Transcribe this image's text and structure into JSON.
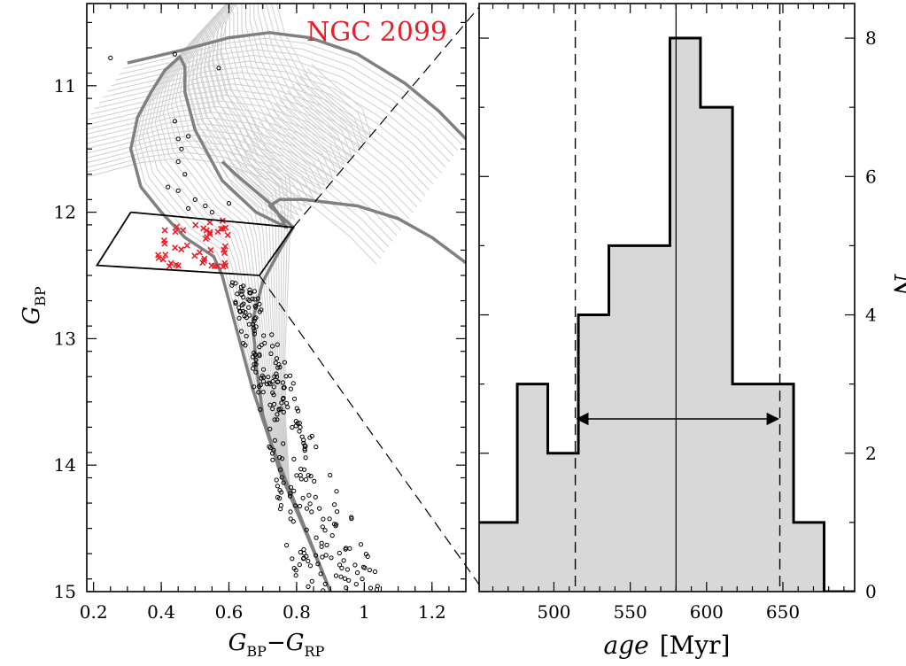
{
  "chart_data": [
    {
      "type": "scatter",
      "title": "NGC 2099",
      "xlabel": "G_BP−G_RP",
      "ylabel": "G_BP",
      "xlabel_parts": {
        "main1": "G",
        "sub1": "BP",
        "op": "−",
        "main2": "G",
        "sub2": "RP"
      },
      "ylabel_parts": {
        "main": "G",
        "sub": "BP"
      },
      "xlim": [
        0.18,
        1.3
      ],
      "ylim": [
        15.0,
        10.35
      ],
      "y_inverted": true,
      "xticks": [
        0.2,
        0.4,
        0.6,
        0.8,
        1.0,
        1.2
      ],
      "xtick_labels": [
        "0.2",
        "0.4",
        "0.6",
        "0.8",
        "1",
        "1.2"
      ],
      "yticks": [
        11,
        12,
        13,
        14,
        15
      ],
      "ytick_labels": [
        "11",
        "12",
        "13",
        "14",
        "15"
      ],
      "title_color": "#e8202a",
      "colors": {
        "stars": "#000000",
        "selected": "#e8202a",
        "isochrone_thick": "#808080",
        "isochrone_thin": "#cfcfcf"
      },
      "isochrone_grid": {
        "count": 22,
        "shift_per_step": [
          0.02,
          -0.07
        ]
      },
      "isochrones_thick": [
        [
          [
            0.9,
            15.0
          ],
          [
            0.84,
            14.6
          ],
          [
            0.78,
            14.2
          ],
          [
            0.72,
            13.8
          ],
          [
            0.67,
            13.4
          ],
          [
            0.63,
            13.0
          ],
          [
            0.6,
            12.7
          ],
          [
            0.58,
            12.5
          ],
          [
            0.555,
            12.35
          ],
          [
            0.47,
            12.2
          ],
          [
            0.4,
            12.0
          ],
          [
            0.34,
            11.8
          ],
          [
            0.31,
            11.5
          ],
          [
            0.33,
            11.25
          ],
          [
            0.37,
            11.05
          ],
          [
            0.41,
            10.88
          ],
          [
            0.455,
            10.77
          ],
          [
            0.47,
            10.85
          ],
          [
            0.47,
            11.05
          ],
          [
            0.5,
            11.35
          ],
          [
            0.58,
            11.75
          ],
          [
            0.68,
            12.0
          ],
          [
            0.77,
            12.12
          ],
          [
            0.73,
            11.95
          ],
          [
            0.62,
            11.7
          ],
          [
            0.58,
            11.6
          ]
        ],
        [
          [
            0.9,
            15.0
          ],
          [
            0.83,
            14.55
          ],
          [
            0.75,
            14.05
          ],
          [
            0.7,
            13.6
          ],
          [
            0.68,
            13.2
          ],
          [
            0.67,
            12.85
          ],
          [
            0.7,
            12.55
          ],
          [
            0.75,
            12.3
          ],
          [
            0.79,
            12.12
          ],
          [
            0.72,
            11.95
          ],
          [
            0.75,
            11.9
          ],
          [
            0.82,
            11.9
          ],
          [
            0.98,
            11.95
          ],
          [
            1.1,
            12.05
          ],
          [
            1.2,
            12.2
          ],
          [
            1.3,
            12.4
          ]
        ],
        [
          [
            0.3,
            10.82
          ],
          [
            0.46,
            10.72
          ],
          [
            0.6,
            10.62
          ],
          [
            0.72,
            10.58
          ],
          [
            0.84,
            10.62
          ],
          [
            0.98,
            10.75
          ],
          [
            1.12,
            10.98
          ],
          [
            1.22,
            11.2
          ],
          [
            1.3,
            11.42
          ]
        ]
      ],
      "red_box": {
        "x": [
          0.39,
          0.6
        ],
        "y": [
          12.03,
          12.46
        ]
      },
      "selection_box": [
        [
          0.31,
          12.0
        ],
        [
          0.79,
          12.12
        ],
        [
          0.69,
          12.5
        ],
        [
          0.21,
          12.42
        ]
      ],
      "zoom_lines": [
        [
          [
            0.79,
            12.12
          ],
          [
            1.31,
            10.48
          ]
        ],
        [
          [
            0.69,
            12.5
          ],
          [
            1.31,
            14.8
          ]
        ]
      ],
      "stars_top": [
        [
          0.25,
          10.78
        ],
        [
          0.44,
          10.75
        ],
        [
          0.57,
          10.86
        ],
        [
          0.45,
          11.42
        ],
        [
          0.46,
          11.5
        ],
        [
          0.45,
          11.6
        ],
        [
          0.47,
          11.7
        ],
        [
          0.42,
          11.8
        ],
        [
          0.45,
          11.83
        ],
        [
          0.5,
          11.9
        ],
        [
          0.53,
          11.95
        ],
        [
          0.48,
          11.97
        ],
        [
          0.55,
          12.0
        ],
        [
          0.6,
          11.93
        ],
        [
          0.44,
          11.28
        ],
        [
          0.48,
          11.4
        ]
      ]
    },
    {
      "type": "histogram",
      "xlabel": "age",
      "xlabel_unit": "[Myr]",
      "ylabel": "N",
      "xlim": [
        451,
        697
      ],
      "ylim": [
        0,
        8.5
      ],
      "xticks": [
        500,
        550,
        600,
        650
      ],
      "xtick_labels": [
        "500",
        "550",
        "600",
        "650"
      ],
      "yticks": [
        0,
        2,
        4,
        6,
        8
      ],
      "ytick_labels": [
        "0",
        "2",
        "4",
        "6",
        "8"
      ],
      "bin_edges": [
        451,
        476,
        496,
        516,
        536,
        576,
        596,
        617,
        657,
        677,
        697
      ],
      "counts": [
        1,
        3,
        2,
        4,
        5,
        8,
        7,
        3,
        1,
        0
      ],
      "median": 580,
      "interval": [
        514,
        648
      ],
      "fill_color": "#d8d8d8"
    }
  ]
}
